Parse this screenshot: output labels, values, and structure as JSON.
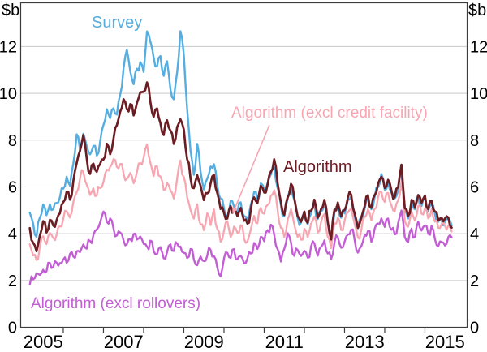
{
  "chart": {
    "unit_left": "$b",
    "unit_right": "$b"
  },
  "chart_data": {
    "type": "line",
    "title": "",
    "xlabel": "",
    "ylabel": "$b",
    "ylim": [
      0,
      13.87
    ],
    "y_ticks": [
      0,
      2,
      4,
      6,
      8,
      10,
      12
    ],
    "x_year_labels": [
      "2005",
      "2007",
      "2009",
      "2011",
      "2013",
      "2015"
    ],
    "x_year_tick_boundaries": [
      2006,
      2007,
      2008,
      2009,
      2010,
      2011,
      2012,
      2013,
      2014,
      2015
    ],
    "grid": "horizontal",
    "legend_position": "inline-annotations",
    "x_start": 2005.1667,
    "x_step": "monthly",
    "series": [
      {
        "name": "Survey",
        "color": "#55ade0",
        "values": [
          4.9,
          4.4,
          3.9,
          4.7,
          5.2,
          4.8,
          5.3,
          5.0,
          5.3,
          5.6,
          5.9,
          6.4,
          6.1,
          7.0,
          8.2,
          7.6,
          8.3,
          7.7,
          7.4,
          7.8,
          7.3,
          7.9,
          8.7,
          9.3,
          8.9,
          9.4,
          9.1,
          9.9,
          11.1,
          11.9,
          10.9,
          10.4,
          11.1,
          11.3,
          10.9,
          12.7,
          12.2,
          11.5,
          11.2,
          11.6,
          10.7,
          11.4,
          10.2,
          9.7,
          10.9,
          12.7,
          11.6,
          9.3,
          7.6,
          6.5,
          7.8,
          6.7,
          5.9,
          6.3,
          6.9,
          7.0,
          6.0,
          5.5,
          5.1,
          4.7,
          5.4,
          5.2,
          4.9,
          5.3,
          4.8,
          4.6,
          5.2,
          5.8,
          5.4,
          6.1,
          5.9,
          6.2,
          6.5,
          6.8,
          6.0,
          5.2,
          4.7,
          5.5,
          6.0,
          5.4,
          4.7,
          4.5,
          4.8,
          4.4,
          4.9,
          5.3,
          4.6,
          5.0,
          5.3,
          4.4,
          3.9,
          4.9,
          5.2,
          4.7,
          4.9,
          5.4,
          5.6,
          4.8,
          4.2,
          4.6,
          5.1,
          5.5,
          5.0,
          5.6,
          6.0,
          6.5,
          5.9,
          6.2,
          5.7,
          5.5,
          5.9,
          6.6,
          5.0,
          4.7,
          5.3,
          5.0,
          5.6,
          5.2,
          5.5,
          5.0,
          5.3,
          4.8,
          4.5,
          4.6,
          4.5,
          4.6,
          4.4
        ]
      },
      {
        "name": "Algorithm",
        "color": "#6b1d23",
        "values": [
          4.2,
          3.6,
          3.3,
          3.9,
          4.5,
          4.1,
          4.6,
          4.3,
          4.6,
          4.9,
          5.3,
          5.8,
          5.5,
          6.2,
          7.0,
          7.6,
          8.2,
          7.2,
          6.6,
          7.0,
          6.6,
          7.0,
          7.2,
          7.8,
          7.4,
          8.1,
          8.6,
          9.2,
          9.8,
          9.3,
          9.5,
          9.1,
          9.6,
          10.0,
          10.1,
          10.5,
          9.6,
          9.0,
          9.4,
          8.7,
          8.2,
          8.9,
          8.4,
          7.8,
          8.6,
          8.9,
          8.4,
          7.2,
          6.4,
          5.9,
          6.5,
          6.1,
          5.4,
          5.7,
          6.2,
          6.5,
          5.7,
          5.1,
          4.9,
          4.6,
          5.2,
          5.0,
          4.7,
          5.1,
          4.6,
          4.4,
          5.0,
          5.6,
          5.3,
          6.0,
          5.8,
          6.1,
          6.6,
          7.2,
          6.2,
          5.3,
          4.8,
          5.6,
          6.1,
          5.5,
          4.8,
          4.5,
          4.9,
          4.5,
          5.0,
          5.4,
          4.7,
          5.1,
          5.4,
          4.5,
          3.8,
          5.0,
          5.3,
          4.8,
          5.0,
          5.5,
          5.7,
          4.9,
          4.2,
          4.7,
          5.2,
          5.6,
          5.1,
          5.7,
          6.1,
          6.4,
          6.0,
          6.3,
          5.8,
          5.6,
          6.0,
          6.9,
          5.1,
          4.8,
          5.4,
          5.1,
          5.7,
          5.3,
          5.6,
          5.1,
          5.4,
          4.9,
          4.6,
          4.7,
          4.6,
          4.7,
          4.3
        ]
      },
      {
        "name": "Algorithm (excl credit facility)",
        "color": "#f7a6b1",
        "values": [
          3.5,
          3.1,
          2.9,
          3.4,
          3.9,
          3.6,
          4.0,
          3.8,
          4.0,
          4.3,
          4.6,
          5.0,
          4.7,
          5.3,
          5.8,
          6.4,
          6.6,
          6.1,
          5.7,
          5.9,
          5.6,
          6.0,
          6.2,
          6.7,
          6.9,
          7.2,
          6.8,
          7.0,
          6.6,
          6.3,
          6.6,
          6.2,
          6.6,
          7.0,
          7.3,
          7.8,
          7.0,
          6.5,
          6.9,
          6.4,
          5.9,
          6.2,
          5.8,
          5.5,
          6.4,
          7.1,
          6.4,
          5.6,
          5.0,
          4.6,
          5.3,
          4.4,
          4.1,
          4.9,
          4.4,
          5.0,
          4.2,
          3.7,
          4.1,
          4.5,
          3.9,
          4.3,
          4.0,
          4.4,
          3.8,
          3.6,
          4.2,
          4.8,
          4.4,
          5.1,
          4.9,
          5.2,
          5.6,
          5.9,
          5.0,
          4.2,
          3.9,
          4.6,
          5.0,
          4.4,
          3.9,
          3.7,
          4.2,
          3.9,
          4.4,
          4.7,
          4.1,
          4.5,
          4.8,
          3.9,
          3.4,
          4.4,
          4.7,
          4.2,
          4.5,
          4.9,
          5.1,
          4.4,
          3.8,
          4.2,
          4.7,
          5.0,
          4.6,
          5.1,
          5.5,
          5.8,
          5.4,
          5.7,
          5.2,
          5.0,
          5.4,
          6.2,
          4.6,
          4.3,
          4.9,
          4.6,
          5.2,
          4.8,
          5.1,
          4.7,
          5.0,
          4.5,
          4.3,
          4.4,
          4.3,
          4.4,
          4.1
        ]
      },
      {
        "name": "Algorithm (excl rollovers)",
        "color": "#c25dd4",
        "values": [
          1.8,
          2.1,
          2.3,
          2.2,
          2.5,
          2.4,
          2.7,
          2.6,
          2.8,
          2.7,
          2.9,
          2.8,
          3.1,
          3.0,
          3.3,
          3.2,
          3.5,
          3.4,
          3.7,
          3.9,
          4.2,
          4.5,
          4.9,
          4.5,
          4.7,
          4.2,
          3.9,
          4.1,
          3.7,
          3.5,
          3.8,
          4.0,
          3.7,
          3.9,
          3.6,
          3.4,
          3.7,
          3.3,
          3.1,
          3.4,
          3.0,
          3.2,
          3.5,
          3.3,
          3.6,
          3.4,
          3.2,
          3.0,
          3.3,
          2.9,
          2.7,
          3.0,
          2.8,
          3.1,
          3.3,
          3.0,
          2.6,
          2.2,
          2.9,
          3.2,
          3.0,
          3.3,
          2.9,
          3.1,
          2.7,
          2.9,
          3.2,
          3.6,
          3.3,
          3.9,
          3.7,
          4.1,
          4.4,
          4.0,
          3.3,
          2.8,
          3.4,
          4.0,
          3.6,
          3.1,
          3.3,
          3.0,
          3.3,
          3.0,
          3.4,
          3.6,
          3.1,
          3.4,
          3.7,
          3.2,
          2.9,
          3.6,
          3.9,
          3.4,
          3.6,
          4.0,
          4.2,
          3.7,
          3.2,
          3.5,
          3.9,
          4.1,
          3.7,
          4.2,
          4.4,
          4.7,
          4.3,
          4.6,
          4.2,
          4.0,
          4.4,
          5.0,
          3.9,
          3.6,
          4.2,
          3.9,
          4.5,
          4.1,
          4.4,
          4.0,
          4.3,
          3.8,
          3.5,
          3.6,
          3.5,
          3.9,
          3.8
        ]
      }
    ],
    "annotations": [
      {
        "text": "Survey",
        "series_index": 0
      },
      {
        "text": "Algorithm (excl credit facility)",
        "series_index": 2,
        "has_arrow": true
      },
      {
        "text": "Algorithm",
        "series_index": 1
      },
      {
        "text": "Algorithm (excl rollovers)",
        "series_index": 3
      }
    ],
    "style_colors": {
      "grid": "#c9c9c9",
      "frame": "#3c3c3c",
      "text": "#000000"
    }
  }
}
